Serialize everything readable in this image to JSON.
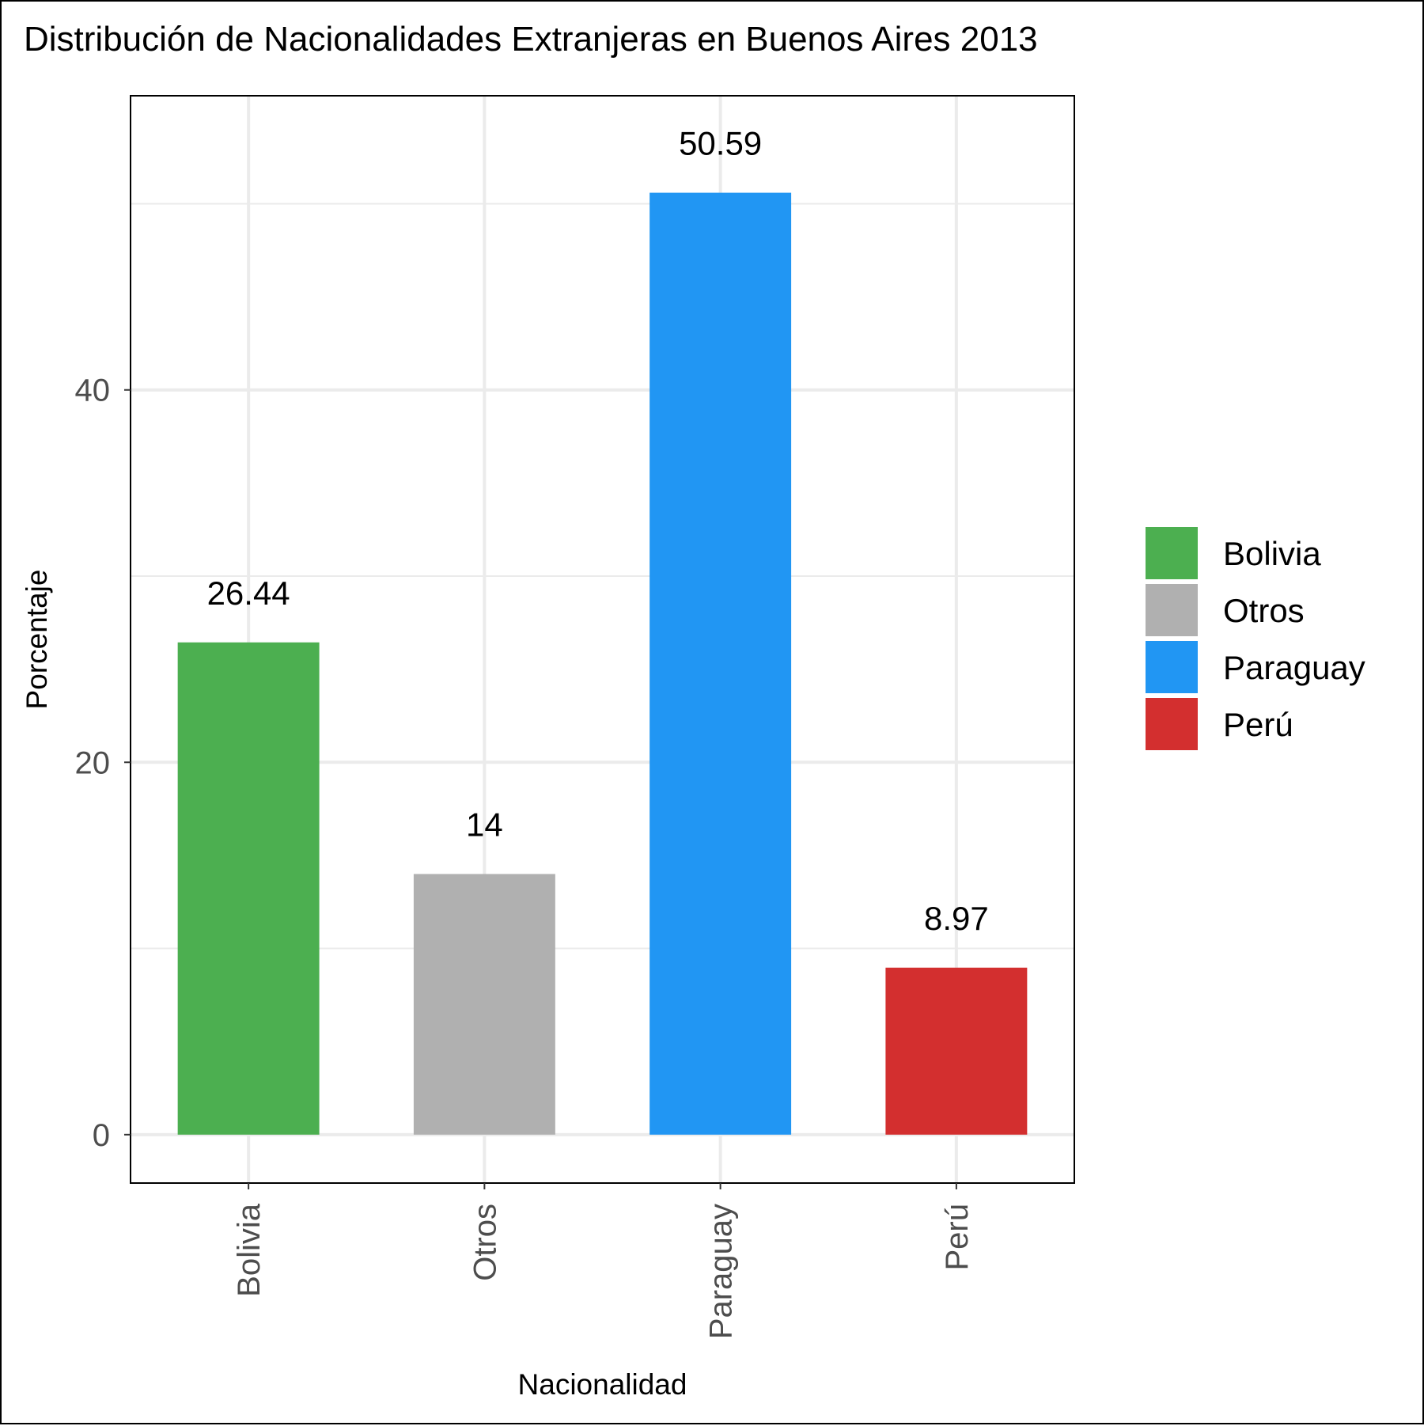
{
  "chart_data": {
    "type": "bar",
    "title": "Distribución de Nacionalidades Extranjeras en Buenos Aires 2013",
    "xlabel": "Nacionalidad",
    "ylabel": "Porcentaje",
    "categories": [
      "Bolivia",
      "Otros",
      "Paraguay",
      "Perú"
    ],
    "values": [
      26.44,
      14,
      50.59,
      8.97
    ],
    "value_labels": [
      "26.44",
      "14",
      "50.59",
      "8.97"
    ],
    "colors": [
      "#4caf50",
      "#b0b0b0",
      "#2196f3",
      "#d32f2f"
    ],
    "yticks": [
      0,
      20,
      40
    ],
    "ytick_labels": [
      "0",
      "20",
      "40"
    ],
    "ylim": [
      -2.6,
      55.8
    ],
    "grid": true,
    "legend": {
      "position": "right",
      "entries": [
        "Bolivia",
        "Otros",
        "Paraguay",
        "Perú"
      ]
    }
  }
}
